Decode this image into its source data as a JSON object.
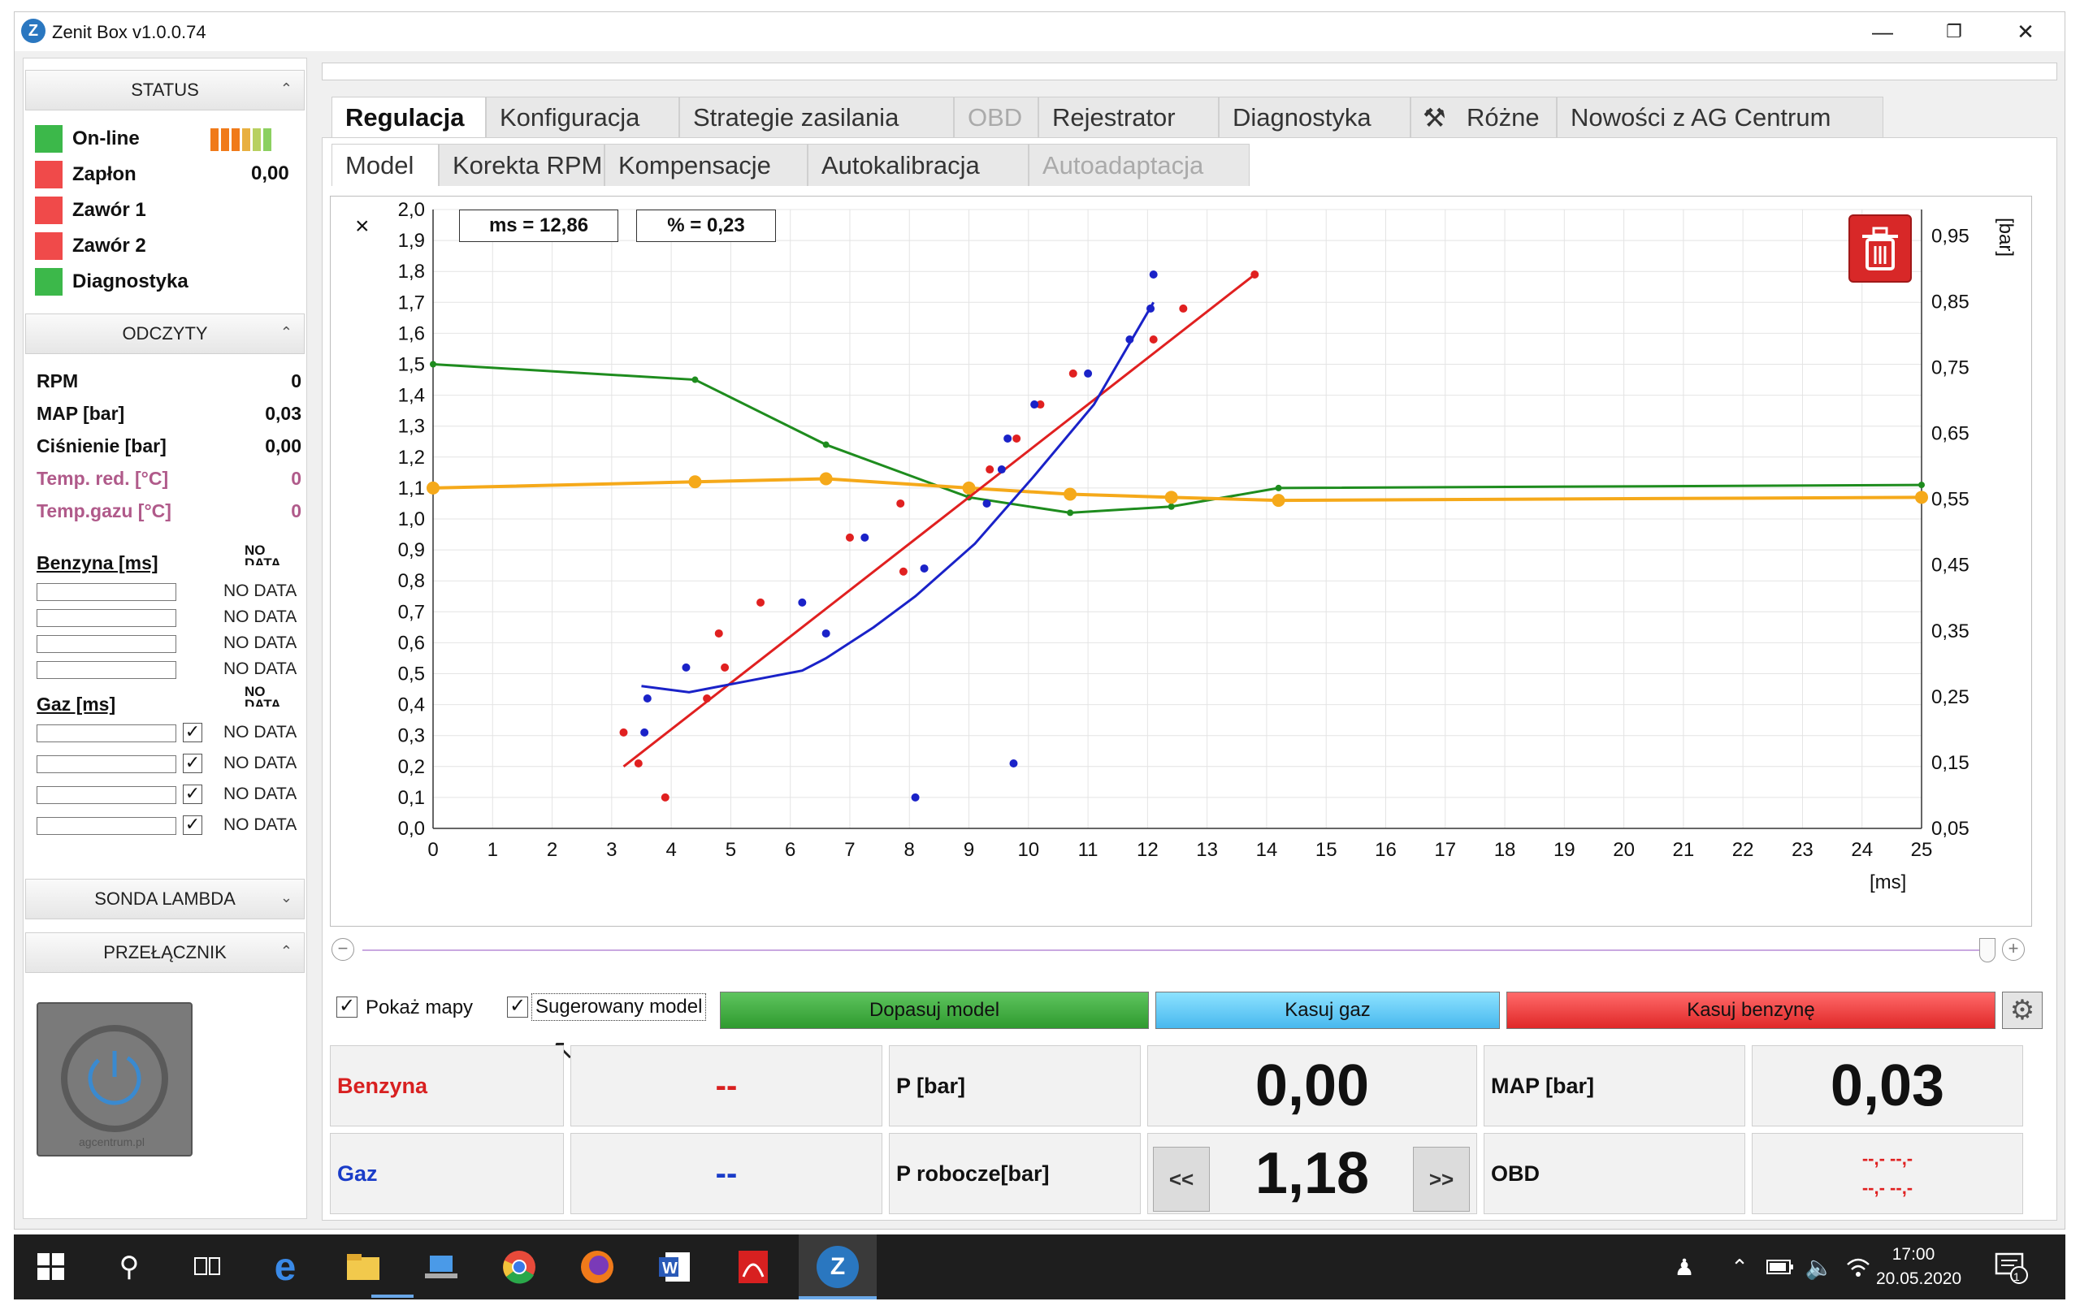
{
  "window": {
    "title": "Zenit Box v1.0.0.74",
    "logo": "Z"
  },
  "status": {
    "header": "STATUS",
    "items": [
      {
        "label": "On-line",
        "color": "#3cb84a",
        "value": ""
      },
      {
        "label": "Zapłon",
        "color": "#f04a4a",
        "value": "0,00"
      },
      {
        "label": "Zawór 1",
        "color": "#f04a4a",
        "value": ""
      },
      {
        "label": "Zawór 2",
        "color": "#f04a4a",
        "value": ""
      },
      {
        "label": "Diagnostyka",
        "color": "#3cb84a",
        "value": ""
      }
    ]
  },
  "odczyty": {
    "header": "ODCZYTY",
    "rows": [
      {
        "label": "RPM",
        "value": "0"
      },
      {
        "label": "MAP [bar]",
        "value": "0,03"
      },
      {
        "label": "Ciśnienie [bar]",
        "value": "0,00"
      },
      {
        "label": "Temp. red. [°C]",
        "value": "0"
      },
      {
        "label": "Temp.gazu [°C]",
        "value": "0"
      }
    ],
    "benzyna_label": "Benzyna [ms]",
    "benzyna_nd": [
      "NO DATA",
      "NO DATA",
      "NO DATA",
      "NO DATA"
    ],
    "gaz_label": "Gaz [ms]",
    "gaz_nd": [
      "NO DATA",
      "NO DATA",
      "NO DATA",
      "NO DATA"
    ],
    "nodata_short": "NO DATA"
  },
  "sonda": {
    "header": "SONDA LAMBDA"
  },
  "przelacznik": {
    "header": "PRZEŁĄCZNIK",
    "brand": "agcentrum.pl"
  },
  "tabs": [
    "Regulacja",
    "Konfiguracja",
    "Strategie zasilania",
    "OBD",
    "Rejestrator",
    "Diagnostyka",
    "Różne",
    "Nowości z AG Centrum"
  ],
  "subtabs": [
    "Model",
    "Korekta RPM",
    "Kompensacje",
    "Autokalibracja",
    "Autoadaptacja"
  ],
  "chart": {
    "ms_label": "ms = 12,86",
    "pct_label": "% = 0,23",
    "x_unit": "[ms]",
    "y2_unit": "[bar]",
    "y_symbol": "×"
  },
  "chart_data": {
    "type": "scatter",
    "xlabel": "[ms]",
    "xlim": [
      0,
      25
    ],
    "ylim": [
      0,
      2
    ],
    "y2label": "[bar]",
    "y2lim": [
      0.05,
      0.99
    ],
    "x_ticks": [
      "0",
      "1",
      "2",
      "3",
      "4",
      "5",
      "6",
      "7",
      "8",
      "9",
      "10",
      "11",
      "12",
      "13",
      "14",
      "15",
      "16",
      "17",
      "18",
      "19",
      "20",
      "21",
      "22",
      "23",
      "24",
      "25"
    ],
    "y_ticks": [
      "0,0",
      "0,1",
      "0,2",
      "0,3",
      "0,4",
      "0,5",
      "0,6",
      "0,7",
      "0,8",
      "0,9",
      "1,0",
      "1,1",
      "1,2",
      "1,3",
      "1,4",
      "1,5",
      "1,6",
      "1,7",
      "1,8",
      "1,9",
      "2,0"
    ],
    "y2_ticks": [
      "0,05",
      "0,15",
      "0,25",
      "0,35",
      "0,45",
      "0,55",
      "0,65",
      "0,75",
      "0,85",
      "0,95"
    ],
    "red_points": [
      [
        3.2,
        0.31
      ],
      [
        3.45,
        0.21
      ],
      [
        3.9,
        0.1
      ],
      [
        4.6,
        0.42
      ],
      [
        4.8,
        0.63
      ],
      [
        4.9,
        0.52
      ],
      [
        5.5,
        0.73
      ],
      [
        7.0,
        0.94
      ],
      [
        7.85,
        1.05
      ],
      [
        7.9,
        0.83
      ],
      [
        9.35,
        1.16
      ],
      [
        9.8,
        1.26
      ],
      [
        10.2,
        1.37
      ],
      [
        10.75,
        1.47
      ],
      [
        12.1,
        1.58
      ],
      [
        12.6,
        1.68
      ],
      [
        13.8,
        1.79
      ]
    ],
    "blue_points": [
      [
        3.55,
        0.31
      ],
      [
        3.6,
        0.42
      ],
      [
        4.25,
        0.52
      ],
      [
        6.2,
        0.73
      ],
      [
        6.6,
        0.63
      ],
      [
        7.25,
        0.94
      ],
      [
        8.1,
        0.1
      ],
      [
        8.25,
        0.84
      ],
      [
        9.3,
        1.05
      ],
      [
        9.55,
        1.16
      ],
      [
        9.65,
        1.26
      ],
      [
        10.1,
        1.37
      ],
      [
        11.0,
        1.47
      ],
      [
        11.7,
        1.58
      ],
      [
        12.05,
        1.68
      ],
      [
        12.1,
        1.79
      ],
      [
        9.75,
        0.21
      ]
    ],
    "red_line": [
      [
        3.2,
        0.2
      ],
      [
        13.8,
        1.79
      ]
    ],
    "blue_line": [
      [
        3.5,
        0.46
      ],
      [
        4.3,
        0.44
      ],
      [
        6.2,
        0.51
      ],
      [
        6.6,
        0.55
      ],
      [
        7.4,
        0.65
      ],
      [
        8.1,
        0.75
      ],
      [
        9.1,
        0.92
      ],
      [
        10.1,
        1.14
      ],
      [
        11.1,
        1.37
      ],
      [
        12.1,
        1.7
      ]
    ],
    "green_line": [
      [
        0,
        1.5
      ],
      [
        4.4,
        1.45
      ],
      [
        6.6,
        1.24
      ],
      [
        9.0,
        1.07
      ],
      [
        10.7,
        1.02
      ],
      [
        12.4,
        1.04
      ],
      [
        14.2,
        1.1
      ],
      [
        25,
        1.11
      ]
    ],
    "orange_line": [
      [
        0,
        1.1
      ],
      [
        4.4,
        1.12
      ],
      [
        6.6,
        1.13
      ],
      [
        9.0,
        1.1
      ],
      [
        10.7,
        1.08
      ],
      [
        12.4,
        1.07
      ],
      [
        14.2,
        1.06
      ],
      [
        25,
        1.07
      ]
    ],
    "colors": {
      "red": "#e02020",
      "blue": "#1a22c8",
      "green": "#1e8c1e",
      "orange": "#f5a91a"
    }
  },
  "controls": {
    "pokaz": "Pokaż mapy",
    "sugerowany": "Sugerowany model",
    "dopasuj": "Dopasuj model",
    "kasuj_gaz": "Kasuj gaz",
    "kasuj_benzyne": "Kasuj benzynę"
  },
  "readouts": {
    "benzyna": "Benzyna",
    "benzyna_val": "--",
    "gaz": "Gaz",
    "gaz_val": "--",
    "p_label": "P [bar]",
    "p_val": "0,00",
    "prob_label": "P robocze[bar]",
    "prob_val": "1,18",
    "prev": "<<",
    "next": ">>",
    "map_label": "MAP [bar]",
    "map_val": "0,03",
    "obd_label": "OBD",
    "obd_val1": "--,- --,-",
    "obd_val2": "--,- --,-"
  },
  "taskbar": {
    "time": "17:00",
    "date": "20.05.2020",
    "notif": "1"
  }
}
